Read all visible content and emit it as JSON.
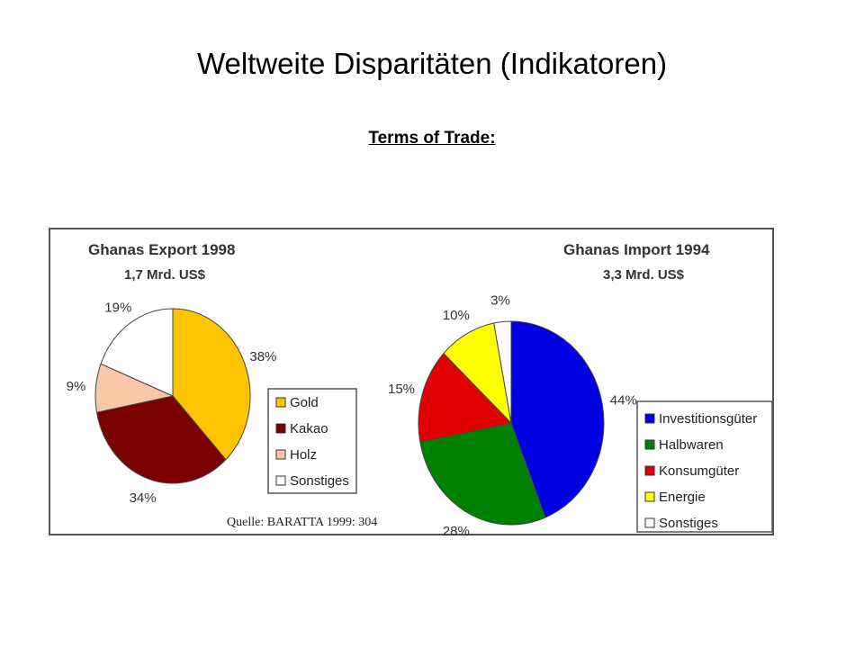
{
  "slide": {
    "title": "Weltweite Disparitäten (Indikatoren)",
    "subtitle": "Terms of Trade:"
  },
  "source": "Quelle: BARATTA 1999: 304",
  "chart_data": [
    {
      "type": "pie",
      "title": "Ghanas Export 1998",
      "subtitle": "1,7 Mrd. US$",
      "slices": [
        {
          "name": "Gold",
          "value": 38,
          "label": "38%",
          "color": "#FFC300"
        },
        {
          "name": "Kakao",
          "value": 34,
          "label": "34%",
          "color": "#7B0000"
        },
        {
          "name": "Holz",
          "value": 9,
          "label": "9%",
          "color": "#FAC8A8"
        },
        {
          "name": "Sonstiges",
          "value": 19,
          "label": "19%",
          "color": "#FFFFFF"
        }
      ],
      "legend_position": "bottom-right"
    },
    {
      "type": "pie",
      "title": "Ghanas Import 1994",
      "subtitle": "3,3 Mrd. US$",
      "slices": [
        {
          "name": "Investitionsgüter",
          "value": 44,
          "label": "44%",
          "color": "#0000E0"
        },
        {
          "name": "Halbwaren",
          "value": 28,
          "label": "28%",
          "color": "#008000"
        },
        {
          "name": "Konsumgüter",
          "value": 15,
          "label": "15%",
          "color": "#E00000"
        },
        {
          "name": "Energie",
          "value": 10,
          "label": "10%",
          "color": "#FFFF00"
        },
        {
          "name": "Sonstiges",
          "value": 3,
          "label": "3%",
          "color": "#FFFFFF"
        }
      ],
      "legend_position": "bottom-right"
    }
  ]
}
